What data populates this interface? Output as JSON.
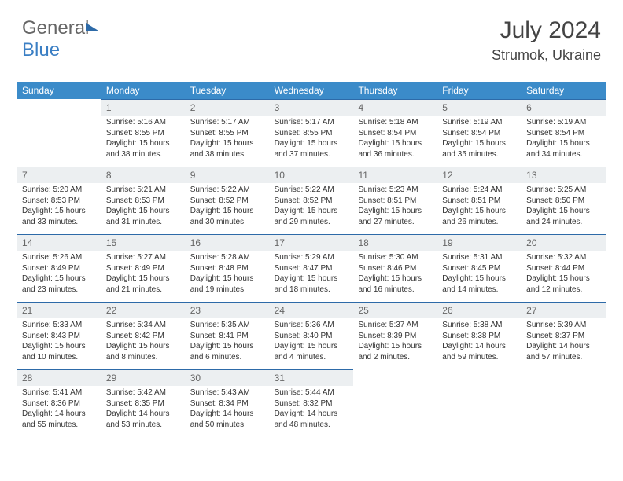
{
  "logo": {
    "part1": "General",
    "part2": "Blue"
  },
  "title": "July 2024",
  "location": "Strumok, Ukraine",
  "colors": {
    "header_bg": "#3b8bc9",
    "header_text": "#ffffff",
    "daynum_bg": "#eceff1",
    "border": "#2d6aa8",
    "text": "#333333"
  },
  "dayNames": [
    "Sunday",
    "Monday",
    "Tuesday",
    "Wednesday",
    "Thursday",
    "Friday",
    "Saturday"
  ],
  "weeks": [
    [
      {
        "n": "",
        "sr": "",
        "ss": "",
        "dl1": "",
        "dl2": ""
      },
      {
        "n": "1",
        "sr": "Sunrise: 5:16 AM",
        "ss": "Sunset: 8:55 PM",
        "dl1": "Daylight: 15 hours",
        "dl2": "and 38 minutes."
      },
      {
        "n": "2",
        "sr": "Sunrise: 5:17 AM",
        "ss": "Sunset: 8:55 PM",
        "dl1": "Daylight: 15 hours",
        "dl2": "and 38 minutes."
      },
      {
        "n": "3",
        "sr": "Sunrise: 5:17 AM",
        "ss": "Sunset: 8:55 PM",
        "dl1": "Daylight: 15 hours",
        "dl2": "and 37 minutes."
      },
      {
        "n": "4",
        "sr": "Sunrise: 5:18 AM",
        "ss": "Sunset: 8:54 PM",
        "dl1": "Daylight: 15 hours",
        "dl2": "and 36 minutes."
      },
      {
        "n": "5",
        "sr": "Sunrise: 5:19 AM",
        "ss": "Sunset: 8:54 PM",
        "dl1": "Daylight: 15 hours",
        "dl2": "and 35 minutes."
      },
      {
        "n": "6",
        "sr": "Sunrise: 5:19 AM",
        "ss": "Sunset: 8:54 PM",
        "dl1": "Daylight: 15 hours",
        "dl2": "and 34 minutes."
      }
    ],
    [
      {
        "n": "7",
        "sr": "Sunrise: 5:20 AM",
        "ss": "Sunset: 8:53 PM",
        "dl1": "Daylight: 15 hours",
        "dl2": "and 33 minutes."
      },
      {
        "n": "8",
        "sr": "Sunrise: 5:21 AM",
        "ss": "Sunset: 8:53 PM",
        "dl1": "Daylight: 15 hours",
        "dl2": "and 31 minutes."
      },
      {
        "n": "9",
        "sr": "Sunrise: 5:22 AM",
        "ss": "Sunset: 8:52 PM",
        "dl1": "Daylight: 15 hours",
        "dl2": "and 30 minutes."
      },
      {
        "n": "10",
        "sr": "Sunrise: 5:22 AM",
        "ss": "Sunset: 8:52 PM",
        "dl1": "Daylight: 15 hours",
        "dl2": "and 29 minutes."
      },
      {
        "n": "11",
        "sr": "Sunrise: 5:23 AM",
        "ss": "Sunset: 8:51 PM",
        "dl1": "Daylight: 15 hours",
        "dl2": "and 27 minutes."
      },
      {
        "n": "12",
        "sr": "Sunrise: 5:24 AM",
        "ss": "Sunset: 8:51 PM",
        "dl1": "Daylight: 15 hours",
        "dl2": "and 26 minutes."
      },
      {
        "n": "13",
        "sr": "Sunrise: 5:25 AM",
        "ss": "Sunset: 8:50 PM",
        "dl1": "Daylight: 15 hours",
        "dl2": "and 24 minutes."
      }
    ],
    [
      {
        "n": "14",
        "sr": "Sunrise: 5:26 AM",
        "ss": "Sunset: 8:49 PM",
        "dl1": "Daylight: 15 hours",
        "dl2": "and 23 minutes."
      },
      {
        "n": "15",
        "sr": "Sunrise: 5:27 AM",
        "ss": "Sunset: 8:49 PM",
        "dl1": "Daylight: 15 hours",
        "dl2": "and 21 minutes."
      },
      {
        "n": "16",
        "sr": "Sunrise: 5:28 AM",
        "ss": "Sunset: 8:48 PM",
        "dl1": "Daylight: 15 hours",
        "dl2": "and 19 minutes."
      },
      {
        "n": "17",
        "sr": "Sunrise: 5:29 AM",
        "ss": "Sunset: 8:47 PM",
        "dl1": "Daylight: 15 hours",
        "dl2": "and 18 minutes."
      },
      {
        "n": "18",
        "sr": "Sunrise: 5:30 AM",
        "ss": "Sunset: 8:46 PM",
        "dl1": "Daylight: 15 hours",
        "dl2": "and 16 minutes."
      },
      {
        "n": "19",
        "sr": "Sunrise: 5:31 AM",
        "ss": "Sunset: 8:45 PM",
        "dl1": "Daylight: 15 hours",
        "dl2": "and 14 minutes."
      },
      {
        "n": "20",
        "sr": "Sunrise: 5:32 AM",
        "ss": "Sunset: 8:44 PM",
        "dl1": "Daylight: 15 hours",
        "dl2": "and 12 minutes."
      }
    ],
    [
      {
        "n": "21",
        "sr": "Sunrise: 5:33 AM",
        "ss": "Sunset: 8:43 PM",
        "dl1": "Daylight: 15 hours",
        "dl2": "and 10 minutes."
      },
      {
        "n": "22",
        "sr": "Sunrise: 5:34 AM",
        "ss": "Sunset: 8:42 PM",
        "dl1": "Daylight: 15 hours",
        "dl2": "and 8 minutes."
      },
      {
        "n": "23",
        "sr": "Sunrise: 5:35 AM",
        "ss": "Sunset: 8:41 PM",
        "dl1": "Daylight: 15 hours",
        "dl2": "and 6 minutes."
      },
      {
        "n": "24",
        "sr": "Sunrise: 5:36 AM",
        "ss": "Sunset: 8:40 PM",
        "dl1": "Daylight: 15 hours",
        "dl2": "and 4 minutes."
      },
      {
        "n": "25",
        "sr": "Sunrise: 5:37 AM",
        "ss": "Sunset: 8:39 PM",
        "dl1": "Daylight: 15 hours",
        "dl2": "and 2 minutes."
      },
      {
        "n": "26",
        "sr": "Sunrise: 5:38 AM",
        "ss": "Sunset: 8:38 PM",
        "dl1": "Daylight: 14 hours",
        "dl2": "and 59 minutes."
      },
      {
        "n": "27",
        "sr": "Sunrise: 5:39 AM",
        "ss": "Sunset: 8:37 PM",
        "dl1": "Daylight: 14 hours",
        "dl2": "and 57 minutes."
      }
    ],
    [
      {
        "n": "28",
        "sr": "Sunrise: 5:41 AM",
        "ss": "Sunset: 8:36 PM",
        "dl1": "Daylight: 14 hours",
        "dl2": "and 55 minutes."
      },
      {
        "n": "29",
        "sr": "Sunrise: 5:42 AM",
        "ss": "Sunset: 8:35 PM",
        "dl1": "Daylight: 14 hours",
        "dl2": "and 53 minutes."
      },
      {
        "n": "30",
        "sr": "Sunrise: 5:43 AM",
        "ss": "Sunset: 8:34 PM",
        "dl1": "Daylight: 14 hours",
        "dl2": "and 50 minutes."
      },
      {
        "n": "31",
        "sr": "Sunrise: 5:44 AM",
        "ss": "Sunset: 8:32 PM",
        "dl1": "Daylight: 14 hours",
        "dl2": "and 48 minutes."
      },
      {
        "n": "",
        "sr": "",
        "ss": "",
        "dl1": "",
        "dl2": ""
      },
      {
        "n": "",
        "sr": "",
        "ss": "",
        "dl1": "",
        "dl2": ""
      },
      {
        "n": "",
        "sr": "",
        "ss": "",
        "dl1": "",
        "dl2": ""
      }
    ]
  ]
}
